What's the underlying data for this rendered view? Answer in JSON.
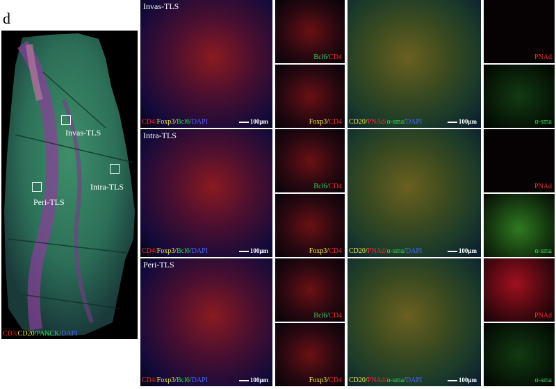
{
  "figure_letter": "d",
  "overview": {
    "legend": [
      {
        "text": "CD3/",
        "color": "#ff2a2a"
      },
      {
        "text": "CD20/",
        "color": "#f5e64a"
      },
      {
        "text": "PANCK/",
        "color": "#3fcf5a"
      },
      {
        "text": "DAPI",
        "color": "#4a64ff"
      }
    ],
    "rois": [
      "Invas-TLS",
      "Intra-TLS",
      "Peri-TLS"
    ]
  },
  "rows": [
    {
      "title": "Invas-TLS",
      "main_legend": [
        {
          "text": "CD4/",
          "color": "#ff2a2a"
        },
        {
          "text": "Foxp3/",
          "color": "#f5e64a"
        },
        {
          "text": "Bcl6/",
          "color": "#3fcf5a"
        },
        {
          "text": "DAPI",
          "color": "#4a64ff"
        }
      ],
      "small_top": [
        {
          "text": "Bcl6/",
          "color": "#3fcf5a"
        },
        {
          "text": "CD4",
          "color": "#ff2a2a"
        }
      ],
      "small_bottom": [
        {
          "text": "Foxp3/",
          "color": "#f5e64a"
        },
        {
          "text": "CD4",
          "color": "#ff2a2a"
        }
      ],
      "big_legend": [
        {
          "text": "CD20/",
          "color": "#f5e64a"
        },
        {
          "text": "PNAd/",
          "color": "#ff2a2a"
        },
        {
          "text": "α-sma/",
          "color": "#3fcf5a"
        },
        {
          "text": "DAPI",
          "color": "#4a64ff"
        }
      ],
      "right_top": [
        {
          "text": "PNAd",
          "color": "#ff2a2a"
        }
      ],
      "right_bottom": [
        {
          "text": "α-sma",
          "color": "#3fcf5a"
        }
      ],
      "scale": "100μm"
    },
    {
      "title": "Intra-TLS",
      "main_legend": [
        {
          "text": "CD4/",
          "color": "#ff2a2a"
        },
        {
          "text": "Foxp3/",
          "color": "#f5e64a"
        },
        {
          "text": "Bcl6/",
          "color": "#3fcf5a"
        },
        {
          "text": "DAPI",
          "color": "#4a64ff"
        }
      ],
      "small_top": [
        {
          "text": "Bcl6/",
          "color": "#3fcf5a"
        },
        {
          "text": "CD4",
          "color": "#ff2a2a"
        }
      ],
      "small_bottom": [
        {
          "text": "Foxp3/",
          "color": "#f5e64a"
        },
        {
          "text": "CD4",
          "color": "#ff2a2a"
        }
      ],
      "big_legend": [
        {
          "text": "CD20/",
          "color": "#f5e64a"
        },
        {
          "text": "PNAd/",
          "color": "#ff2a2a"
        },
        {
          "text": "α-sma/",
          "color": "#3fcf5a"
        },
        {
          "text": "DAPI",
          "color": "#4a64ff"
        }
      ],
      "right_top": [
        {
          "text": "PNAd",
          "color": "#ff2a2a"
        }
      ],
      "right_bottom": [
        {
          "text": "α-sma",
          "color": "#3fcf5a"
        }
      ],
      "scale": "100μm"
    },
    {
      "title": "Peri-TLS",
      "main_legend": [
        {
          "text": "CD4/",
          "color": "#ff2a2a"
        },
        {
          "text": "Foxp3/",
          "color": "#f5e64a"
        },
        {
          "text": "Bcl6/",
          "color": "#3fcf5a"
        },
        {
          "text": "DAPI",
          "color": "#4a64ff"
        }
      ],
      "small_top": [
        {
          "text": "Bcl6/",
          "color": "#3fcf5a"
        },
        {
          "text": "CD4",
          "color": "#ff2a2a"
        }
      ],
      "small_bottom": [
        {
          "text": "Foxp3/",
          "color": "#f5e64a"
        },
        {
          "text": "CD4",
          "color": "#ff2a2a"
        }
      ],
      "big_legend": [
        {
          "text": "CD20/",
          "color": "#f5e64a"
        },
        {
          "text": "PNAd/",
          "color": "#ff2a2a"
        },
        {
          "text": "α-sma/",
          "color": "#3fcf5a"
        },
        {
          "text": "DAPI",
          "color": "#4a64ff"
        }
      ],
      "right_top": [
        {
          "text": "PNAd",
          "color": "#ff2a2a"
        }
      ],
      "right_bottom": [
        {
          "text": "α-sma",
          "color": "#3fcf5a"
        }
      ],
      "scale": "100μm"
    }
  ]
}
